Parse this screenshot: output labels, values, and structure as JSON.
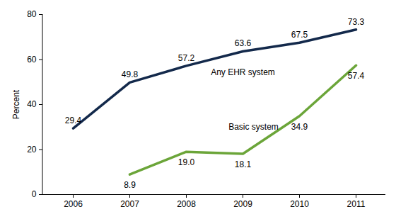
{
  "chart_data": {
    "type": "line",
    "categories": [
      "2006",
      "2007",
      "2008",
      "2009",
      "2010",
      "2011"
    ],
    "series": [
      {
        "name": "Any EHR system",
        "color": "#13294b",
        "values": [
          29.4,
          49.8,
          57.2,
          63.6,
          67.5,
          73.3
        ]
      },
      {
        "name": "Basic system",
        "color": "#6ba539",
        "values": [
          null,
          8.9,
          19.0,
          18.1,
          34.9,
          57.4
        ],
        "value_labels": [
          null,
          "8.9",
          "19.0",
          "18.1",
          "34.9",
          "57.4"
        ]
      }
    ],
    "ylabel": "Percent",
    "ylim": [
      0,
      80
    ],
    "yticks": [
      0,
      20,
      40,
      60,
      80
    ],
    "grid": false,
    "data_labels": true
  }
}
